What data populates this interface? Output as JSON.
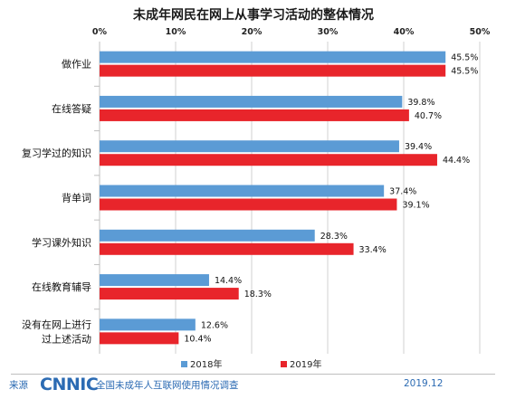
{
  "chart_data": {
    "type": "bar",
    "orientation": "horizontal",
    "title": "未成年网民在网上从事学习活动的整体情况",
    "categories": [
      "做作业",
      "在线答疑",
      "复习学过的知识",
      "背单词",
      "学习课外知识",
      "在线教育辅导",
      "没有在网上进行过上述活动"
    ],
    "category_lines": [
      [
        "做作业"
      ],
      [
        "在线答疑"
      ],
      [
        "复习学过的知识"
      ],
      [
        "背单词"
      ],
      [
        "学习课外知识"
      ],
      [
        "在线教育辅导"
      ],
      [
        "没有在网上进行",
        "过上述活动"
      ]
    ],
    "series": [
      {
        "name": "2018年",
        "color": "#5b9bd5",
        "values": [
          45.5,
          39.8,
          39.4,
          37.4,
          28.3,
          14.4,
          12.6
        ]
      },
      {
        "name": "2019年",
        "color": "#e8252b",
        "values": [
          45.5,
          40.7,
          44.4,
          39.1,
          33.4,
          18.3,
          10.4
        ]
      }
    ],
    "value_suffix": "%",
    "xlim": [
      0,
      50
    ],
    "xticks": [
      "0%",
      "10%",
      "20%",
      "30%",
      "40%",
      "50%"
    ],
    "grid": true,
    "legend_position": "bottom"
  },
  "footer": {
    "source_label": "来源",
    "logo_text": "CNNIC",
    "report_name": "全国未成年人互联网使用情况调查",
    "date": "2019.12"
  }
}
